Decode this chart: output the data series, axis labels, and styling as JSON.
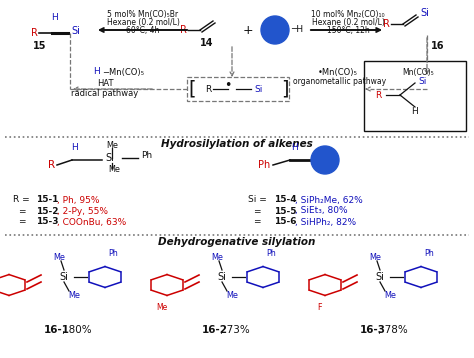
{
  "bg": "#ffffff",
  "red": "#cc0000",
  "blue": "#1111bb",
  "black": "#111111",
  "dgray": "#777777",
  "lc1": "5 mol% Mn(CO)₅Br",
  "lc2": "Hexane (0.2 mol/L)",
  "lc3": "60°C, 4h",
  "rc1": "10 mol% Mn₂(CO)₁₀",
  "rc2": "Hexane (0.2 mol/L)",
  "rc3": "150°C, 12h",
  "hydro_label": "Hydrosilylation of alkenes",
  "dehyd_label": "Dehydrogenative silylation",
  "r_entries": [
    [
      "15-1",
      "Ph",
      "95%"
    ],
    [
      "15-2",
      "2-Py",
      "55%"
    ],
    [
      "15-3",
      "COOnBu",
      "63%"
    ]
  ],
  "si_entries": [
    [
      "15-4",
      "SiPh₂Me",
      "62%"
    ],
    [
      "15-5",
      "SiEt₃",
      "80%"
    ],
    [
      "15-6",
      "SiHPh₂",
      "82%"
    ]
  ],
  "products": [
    {
      "label": "16-1",
      "yield": "80%",
      "sub": null,
      "sub_pos": "bottom"
    },
    {
      "label": "16-2",
      "yield": "73%",
      "sub": "Me",
      "sub_pos": "bottom"
    },
    {
      "label": "16-3",
      "yield": "78%",
      "sub": "F",
      "sub_pos": "bottom"
    }
  ]
}
